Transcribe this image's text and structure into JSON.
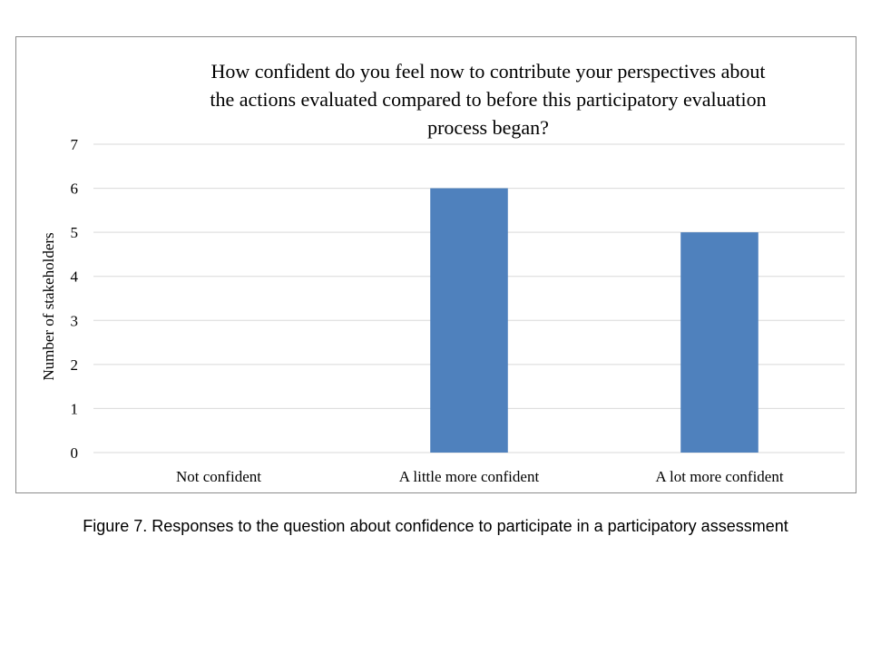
{
  "chart_data": {
    "type": "bar",
    "title": "How confident do you feel now to contribute your perspectives about\nthe actions evaluated compared to before this participatory evaluation\nprocess began?",
    "ylabel": "Number of stakeholders",
    "xlabel": "",
    "categories": [
      "Not confident",
      "A little more confident",
      "A lot more confident"
    ],
    "values": [
      0,
      6,
      5
    ],
    "ylim": [
      0,
      7
    ],
    "yticks": [
      0,
      1,
      2,
      3,
      4,
      5,
      6,
      7
    ],
    "grid": true,
    "legend": "none",
    "bar_color": "#4f81bd",
    "grid_color": "#d9d9d9"
  },
  "caption": "Figure 7. Responses to the question about confidence to participate in a participatory assessment"
}
